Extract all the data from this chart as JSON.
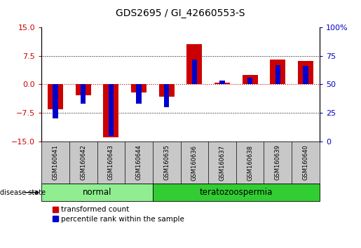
{
  "title": "GDS2695 / GI_42660553-S",
  "samples": [
    "GSM160641",
    "GSM160642",
    "GSM160643",
    "GSM160644",
    "GSM160635",
    "GSM160636",
    "GSM160637",
    "GSM160638",
    "GSM160639",
    "GSM160640"
  ],
  "groups": [
    "normal",
    "normal",
    "normal",
    "normal",
    "teratozoospermia",
    "teratozoospermia",
    "teratozoospermia",
    "teratozoospermia",
    "teratozoospermia",
    "teratozoospermia"
  ],
  "red_values": [
    -6.5,
    -2.8,
    -14.0,
    -2.2,
    -3.2,
    10.5,
    0.5,
    2.5,
    6.5,
    6.2
  ],
  "blue_percentiles": [
    20,
    33,
    5,
    33,
    30,
    72,
    53,
    56,
    67,
    66
  ],
  "ylim_left": [
    -15,
    15
  ],
  "ylim_right": [
    0,
    100
  ],
  "yticks_left": [
    -15,
    -7.5,
    0,
    7.5,
    15
  ],
  "yticks_right": [
    0,
    25,
    50,
    75,
    100
  ],
  "bar_color_red": "#CC0000",
  "bar_color_blue": "#0000CC",
  "red_bar_width": 0.55,
  "blue_bar_width": 0.18,
  "legend_red_label": "transformed count",
  "legend_blue_label": "percentile rank within the sample",
  "disease_state_label": "disease state",
  "normal_label": "normal",
  "teratozoospermia_label": "teratozoospermia",
  "normal_color": "#90EE90",
  "terato_color": "#32CD32",
  "sample_box_color": "#C8C8C8"
}
